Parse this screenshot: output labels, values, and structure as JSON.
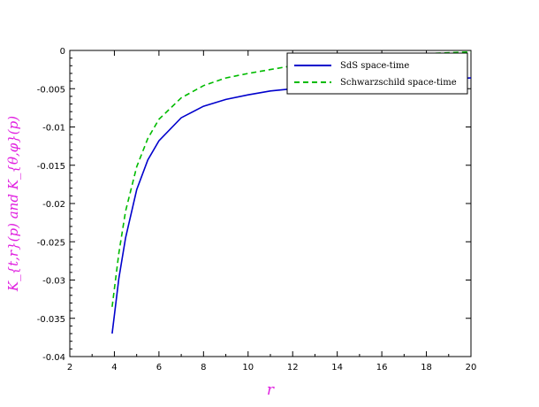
{
  "chart_data": {
    "type": "line",
    "xlabel": "r",
    "ylabel": "K_{t,r}(p) and K_{θ,φ}(p)",
    "xlim": [
      2,
      20
    ],
    "ylim": [
      -0.04,
      0
    ],
    "x_ticks": [
      2,
      4,
      6,
      8,
      10,
      12,
      14,
      16,
      18,
      20
    ],
    "x_tick_labels": [
      "2",
      "4",
      "6",
      "8",
      "10",
      "12",
      "14",
      "16",
      "18",
      "20"
    ],
    "y_ticks": [
      0,
      -0.005,
      -0.01,
      -0.015,
      -0.02,
      -0.025,
      -0.03,
      -0.035,
      -0.04
    ],
    "y_tick_labels": [
      "0",
      "-0.005",
      "-0.01",
      "-0.015",
      "-0.02",
      "-0.025",
      "-0.03",
      "-0.035",
      "-0.04"
    ],
    "grid": false,
    "legend_position": "top-right",
    "series": [
      {
        "name": "SdS space-time",
        "color": "#0000cc",
        "style": "solid",
        "x": [
          3.9,
          4.2,
          4.5,
          5,
          5.5,
          6,
          7,
          8,
          9,
          10,
          11,
          12,
          14,
          16,
          18,
          20
        ],
        "y": [
          -0.037,
          -0.0298,
          -0.0245,
          -0.0182,
          -0.0143,
          -0.0118,
          -0.0088,
          -0.0073,
          -0.0064,
          -0.0058,
          -0.0053,
          -0.005,
          -0.0045,
          -0.0041,
          -0.0038,
          -0.0036
        ]
      },
      {
        "name": "Schwarzschild space-time",
        "color": "#00bb00",
        "style": "dashed",
        "x": [
          3.9,
          4.2,
          4.5,
          5,
          5.5,
          6,
          7,
          8,
          9,
          10,
          11,
          12,
          14,
          16,
          18,
          20
        ],
        "y": [
          -0.0335,
          -0.0265,
          -0.021,
          -0.0152,
          -0.0115,
          -0.009,
          -0.0062,
          -0.0046,
          -0.0036,
          -0.003,
          -0.0025,
          -0.002,
          -0.0013,
          -0.0008,
          -0.0004,
          -0.0002
        ]
      }
    ]
  }
}
